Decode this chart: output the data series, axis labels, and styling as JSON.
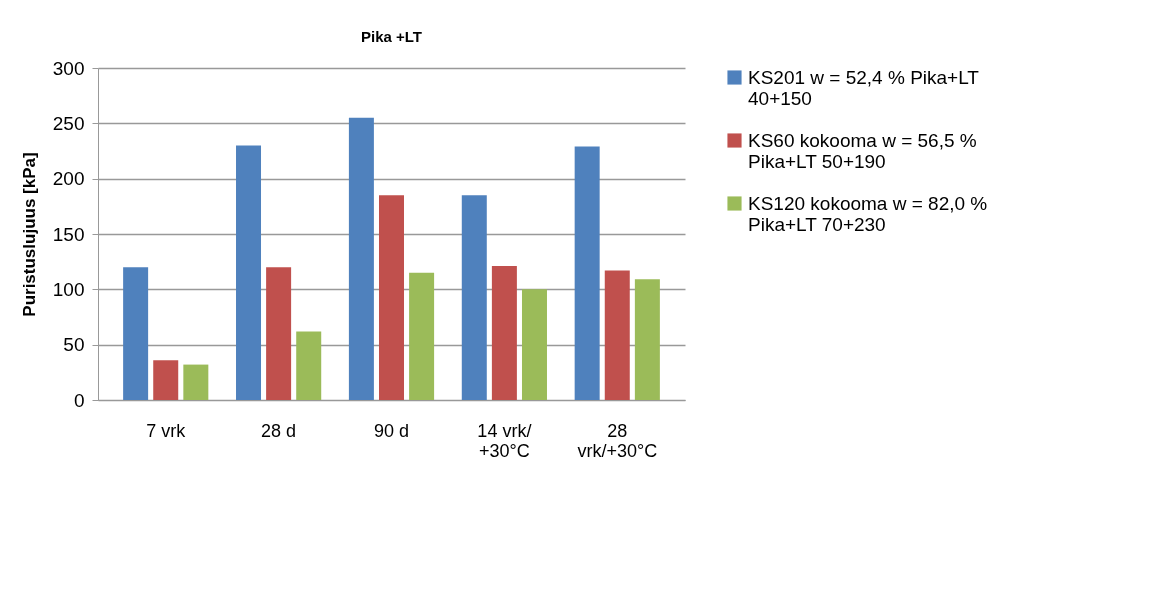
{
  "chart_data": {
    "type": "bar",
    "title": "Pika +LT",
    "ylabel": "Puristuslujuus  [kPa]",
    "categories": [
      "7 vrk",
      "28 d",
      "90 d",
      "14 vrk/ +30°C",
      "28 vrk/+30°C"
    ],
    "series": [
      {
        "name": "KS201 w = 52,4 % Pika+LT 40+150",
        "color": "#4f81bd",
        "values": [
          120,
          230,
          255,
          185,
          229
        ]
      },
      {
        "name": "KS60 kokooma w = 56,5 % Pika+LT 50+190",
        "color": "#c0504d",
        "values": [
          36,
          120,
          185,
          121,
          117
        ]
      },
      {
        "name": "KS120 kokooma w = 82,0 % Pika+LT 70+230",
        "color": "#9bbb59",
        "values": [
          32,
          62,
          115,
          100,
          109
        ]
      }
    ],
    "ylim": [
      0,
      300
    ],
    "yticks": [
      0,
      50,
      100,
      150,
      200,
      250,
      300
    ],
    "grid": "y",
    "legend": "right"
  }
}
